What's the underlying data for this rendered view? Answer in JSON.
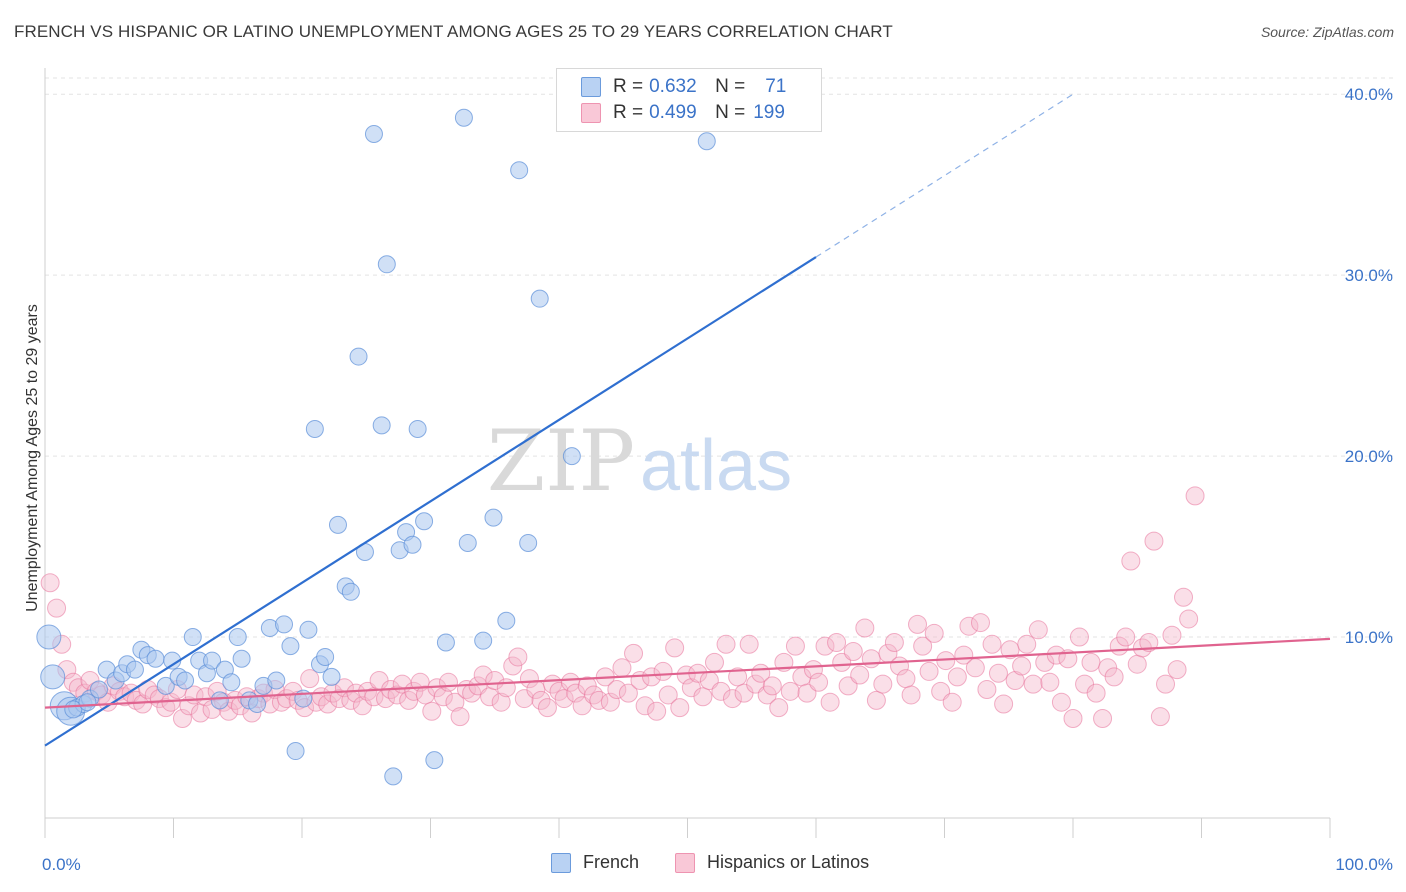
{
  "title": "FRENCH VS HISPANIC OR LATINO UNEMPLOYMENT AMONG AGES 25 TO 29 YEARS CORRELATION CHART",
  "source": "Source: ZipAtlas.com",
  "watermark": {
    "zip": "ZIP",
    "atlas": "atlas"
  },
  "colors": {
    "french": "#5b8fd9",
    "french_fill": "#a9c6ef",
    "hispanic": "#e8739a",
    "hispanic_fill": "#f5b8cb",
    "tick_label": "#3b73c8"
  },
  "legend_top": {
    "rows": [
      {
        "key": "R =",
        "r": "0.632",
        "n_label": "N =",
        "n": "71"
      },
      {
        "key": "R =",
        "r": "0.499",
        "n_label": "N =",
        "n": "199"
      }
    ]
  },
  "legend_bottom": [
    {
      "label": "French"
    },
    {
      "label": "Hispanics or Latinos"
    }
  ],
  "chart_data": {
    "type": "scatter",
    "title": "FRENCH VS HISPANIC OR LATINO UNEMPLOYMENT AMONG AGES 25 TO 29 YEARS CORRELATION CHART",
    "xlabel": "",
    "ylabel": "Unemployment Among Ages 25 to 29 years",
    "xlim": [
      0,
      100
    ],
    "ylim": [
      0,
      42
    ],
    "x_tick_labels": [
      "0.0%",
      "100.0%"
    ],
    "y_ticks": [
      10,
      20,
      30,
      40
    ],
    "y_tick_labels": [
      "10.0%",
      "20.0%",
      "30.0%",
      "40.0%"
    ],
    "grid": true,
    "legend_position": "bottom",
    "series": [
      {
        "name": "French",
        "r": 0.632,
        "n": 71,
        "trend": {
          "x0": 0,
          "y0": 4.0,
          "x1": 60,
          "y1": 31.0,
          "dashed_to_x": 80
        },
        "points": [
          [
            0.3,
            10.0
          ],
          [
            0.6,
            7.8
          ],
          [
            1.5,
            6.2
          ],
          [
            2.0,
            5.9
          ],
          [
            2.5,
            6.1
          ],
          [
            3.0,
            6.3
          ],
          [
            3.5,
            6.6
          ],
          [
            4.2,
            7.1
          ],
          [
            4.8,
            8.2
          ],
          [
            5.5,
            7.6
          ],
          [
            6.0,
            8.0
          ],
          [
            6.4,
            8.5
          ],
          [
            7.0,
            8.2
          ],
          [
            7.5,
            9.3
          ],
          [
            8.0,
            9.0
          ],
          [
            8.6,
            8.8
          ],
          [
            9.4,
            7.3
          ],
          [
            9.9,
            8.7
          ],
          [
            10.4,
            7.8
          ],
          [
            10.9,
            7.6
          ],
          [
            11.5,
            10.0
          ],
          [
            12.0,
            8.7
          ],
          [
            12.6,
            8.0
          ],
          [
            13.0,
            8.7
          ],
          [
            13.6,
            6.5
          ],
          [
            14.0,
            8.2
          ],
          [
            14.5,
            7.5
          ],
          [
            15.0,
            10.0
          ],
          [
            15.3,
            8.8
          ],
          [
            15.9,
            6.5
          ],
          [
            16.5,
            6.3
          ],
          [
            17.0,
            7.3
          ],
          [
            17.5,
            10.5
          ],
          [
            18.0,
            7.6
          ],
          [
            18.6,
            10.7
          ],
          [
            19.1,
            9.5
          ],
          [
            19.5,
            3.7
          ],
          [
            20.1,
            6.6
          ],
          [
            20.5,
            10.4
          ],
          [
            21.0,
            21.5
          ],
          [
            21.4,
            8.5
          ],
          [
            21.8,
            8.9
          ],
          [
            22.3,
            7.8
          ],
          [
            22.8,
            16.2
          ],
          [
            23.4,
            12.8
          ],
          [
            23.8,
            12.5
          ],
          [
            24.4,
            25.5
          ],
          [
            24.9,
            14.7
          ],
          [
            25.6,
            37.8
          ],
          [
            26.2,
            21.7
          ],
          [
            26.6,
            30.6
          ],
          [
            27.1,
            2.3
          ],
          [
            27.6,
            14.8
          ],
          [
            28.1,
            15.8
          ],
          [
            28.6,
            15.1
          ],
          [
            29.0,
            21.5
          ],
          [
            29.5,
            16.4
          ],
          [
            30.3,
            3.2
          ],
          [
            31.2,
            9.7
          ],
          [
            32.6,
            38.7
          ],
          [
            32.9,
            15.2
          ],
          [
            34.1,
            9.8
          ],
          [
            34.9,
            16.6
          ],
          [
            35.9,
            10.9
          ],
          [
            36.9,
            35.8
          ],
          [
            37.6,
            15.2
          ],
          [
            38.5,
            28.7
          ],
          [
            41.0,
            20.0
          ],
          [
            51.5,
            37.4
          ],
          [
            2.2,
            6.0
          ],
          [
            3.3,
            6.4
          ]
        ]
      },
      {
        "name": "Hispanics or Latinos",
        "r": 0.499,
        "n": 199,
        "trend": {
          "x0": 0,
          "y0": 6.1,
          "x1": 100,
          "y1": 9.9
        },
        "points": [
          [
            0.4,
            13.0
          ],
          [
            0.9,
            11.6
          ],
          [
            1.3,
            9.6
          ],
          [
            1.7,
            8.2
          ],
          [
            2.2,
            7.5
          ],
          [
            2.6,
            7.2
          ],
          [
            3.1,
            6.9
          ],
          [
            3.5,
            7.6
          ],
          [
            4.0,
            7.0
          ],
          [
            4.4,
            6.8
          ],
          [
            4.9,
            6.4
          ],
          [
            5.3,
            7.3
          ],
          [
            5.8,
            7.0
          ],
          [
            6.2,
            6.7
          ],
          [
            6.7,
            6.9
          ],
          [
            7.1,
            6.5
          ],
          [
            7.6,
            6.3
          ],
          [
            8.0,
            7.1
          ],
          [
            8.5,
            6.8
          ],
          [
            8.9,
            6.6
          ],
          [
            9.4,
            6.1
          ],
          [
            9.8,
            6.4
          ],
          [
            10.3,
            7.1
          ],
          [
            10.7,
            5.5
          ],
          [
            11.2,
            6.2
          ],
          [
            11.6,
            6.8
          ],
          [
            12.1,
            5.8
          ],
          [
            12.5,
            6.7
          ],
          [
            13.0,
            6.0
          ],
          [
            13.4,
            7.0
          ],
          [
            13.9,
            6.4
          ],
          [
            14.3,
            5.9
          ],
          [
            14.8,
            6.5
          ],
          [
            15.2,
            6.2
          ],
          [
            15.7,
            6.7
          ],
          [
            16.1,
            5.8
          ],
          [
            16.6,
            6.6
          ],
          [
            17.0,
            6.9
          ],
          [
            17.5,
            6.3
          ],
          [
            17.9,
            7.1
          ],
          [
            18.4,
            6.4
          ],
          [
            18.8,
            6.6
          ],
          [
            19.3,
            7.0
          ],
          [
            19.7,
            6.5
          ],
          [
            20.2,
            6.1
          ],
          [
            20.6,
            7.7
          ],
          [
            21.1,
            6.4
          ],
          [
            21.5,
            6.7
          ],
          [
            22.0,
            6.3
          ],
          [
            22.4,
            6.9
          ],
          [
            22.9,
            6.6
          ],
          [
            23.3,
            7.2
          ],
          [
            23.8,
            6.5
          ],
          [
            24.2,
            6.9
          ],
          [
            24.7,
            6.2
          ],
          [
            25.1,
            7.0
          ],
          [
            25.6,
            6.7
          ],
          [
            26.0,
            7.6
          ],
          [
            26.5,
            6.6
          ],
          [
            26.9,
            7.1
          ],
          [
            27.4,
            6.8
          ],
          [
            27.8,
            7.4
          ],
          [
            28.3,
            6.5
          ],
          [
            28.7,
            7.0
          ],
          [
            29.2,
            7.5
          ],
          [
            29.6,
            6.8
          ],
          [
            30.1,
            5.9
          ],
          [
            30.5,
            7.2
          ],
          [
            31.0,
            6.7
          ],
          [
            31.4,
            7.5
          ],
          [
            31.9,
            6.4
          ],
          [
            32.3,
            5.6
          ],
          [
            32.8,
            7.1
          ],
          [
            33.2,
            6.9
          ],
          [
            33.7,
            7.3
          ],
          [
            34.1,
            7.9
          ],
          [
            34.6,
            6.7
          ],
          [
            35.0,
            7.6
          ],
          [
            35.5,
            6.4
          ],
          [
            35.9,
            7.2
          ],
          [
            36.4,
            8.4
          ],
          [
            36.8,
            8.9
          ],
          [
            37.3,
            6.6
          ],
          [
            37.7,
            7.7
          ],
          [
            38.2,
            7.1
          ],
          [
            38.6,
            6.5
          ],
          [
            39.1,
            6.1
          ],
          [
            39.5,
            7.4
          ],
          [
            40.0,
            7.0
          ],
          [
            40.4,
            6.6
          ],
          [
            40.9,
            7.5
          ],
          [
            41.3,
            6.9
          ],
          [
            41.8,
            6.2
          ],
          [
            42.2,
            7.3
          ],
          [
            42.7,
            6.8
          ],
          [
            43.1,
            6.5
          ],
          [
            43.6,
            7.8
          ],
          [
            44.0,
            6.4
          ],
          [
            44.5,
            7.1
          ],
          [
            44.9,
            8.3
          ],
          [
            45.4,
            6.9
          ],
          [
            45.8,
            9.1
          ],
          [
            46.3,
            7.6
          ],
          [
            46.7,
            6.2
          ],
          [
            47.2,
            7.8
          ],
          [
            47.6,
            5.9
          ],
          [
            48.1,
            8.1
          ],
          [
            48.5,
            6.8
          ],
          [
            49.0,
            9.4
          ],
          [
            49.4,
            6.1
          ],
          [
            49.9,
            7.9
          ],
          [
            50.3,
            7.2
          ],
          [
            50.8,
            8.0
          ],
          [
            51.2,
            6.7
          ],
          [
            51.7,
            7.6
          ],
          [
            52.1,
            8.6
          ],
          [
            52.6,
            7.0
          ],
          [
            53.0,
            9.6
          ],
          [
            53.5,
            6.6
          ],
          [
            53.9,
            7.8
          ],
          [
            54.4,
            6.9
          ],
          [
            54.8,
            9.6
          ],
          [
            55.3,
            7.4
          ],
          [
            55.7,
            8.0
          ],
          [
            56.2,
            6.8
          ],
          [
            56.6,
            7.3
          ],
          [
            57.1,
            6.1
          ],
          [
            57.5,
            8.6
          ],
          [
            58.0,
            7.0
          ],
          [
            58.4,
            9.5
          ],
          [
            58.9,
            7.8
          ],
          [
            59.3,
            6.9
          ],
          [
            59.8,
            8.2
          ],
          [
            60.2,
            7.5
          ],
          [
            60.7,
            9.5
          ],
          [
            61.1,
            6.4
          ],
          [
            61.6,
            9.7
          ],
          [
            62.0,
            8.6
          ],
          [
            62.5,
            7.3
          ],
          [
            62.9,
            9.2
          ],
          [
            63.4,
            7.9
          ],
          [
            63.8,
            10.5
          ],
          [
            64.3,
            8.8
          ],
          [
            64.7,
            6.5
          ],
          [
            65.2,
            7.4
          ],
          [
            65.6,
            9.1
          ],
          [
            66.1,
            9.7
          ],
          [
            66.5,
            8.4
          ],
          [
            67.0,
            7.7
          ],
          [
            67.4,
            6.8
          ],
          [
            67.9,
            10.7
          ],
          [
            68.3,
            9.5
          ],
          [
            68.8,
            8.1
          ],
          [
            69.2,
            10.2
          ],
          [
            69.7,
            7.0
          ],
          [
            70.1,
            8.7
          ],
          [
            70.6,
            6.4
          ],
          [
            71.0,
            7.8
          ],
          [
            71.5,
            9.0
          ],
          [
            71.9,
            10.6
          ],
          [
            72.4,
            8.3
          ],
          [
            72.8,
            10.8
          ],
          [
            73.3,
            7.1
          ],
          [
            73.7,
            9.6
          ],
          [
            74.2,
            8.0
          ],
          [
            74.6,
            6.3
          ],
          [
            75.1,
            9.3
          ],
          [
            75.5,
            7.6
          ],
          [
            76.0,
            8.4
          ],
          [
            76.4,
            9.6
          ],
          [
            76.9,
            7.4
          ],
          [
            77.3,
            10.4
          ],
          [
            77.8,
            8.6
          ],
          [
            78.2,
            7.5
          ],
          [
            78.7,
            9.0
          ],
          [
            79.1,
            6.4
          ],
          [
            79.6,
            8.8
          ],
          [
            80.0,
            5.5
          ],
          [
            80.5,
            10.0
          ],
          [
            80.9,
            7.4
          ],
          [
            81.4,
            8.6
          ],
          [
            81.8,
            6.9
          ],
          [
            82.3,
            5.5
          ],
          [
            82.7,
            8.3
          ],
          [
            83.2,
            7.8
          ],
          [
            83.6,
            9.5
          ],
          [
            84.1,
            10.0
          ],
          [
            84.5,
            14.2
          ],
          [
            85.0,
            8.5
          ],
          [
            85.4,
            9.4
          ],
          [
            85.9,
            9.7
          ],
          [
            86.3,
            15.3
          ],
          [
            86.8,
            5.6
          ],
          [
            87.2,
            7.4
          ],
          [
            87.7,
            10.1
          ],
          [
            88.1,
            8.2
          ],
          [
            88.6,
            12.2
          ],
          [
            89.0,
            11.0
          ],
          [
            89.5,
            17.8
          ]
        ]
      }
    ]
  }
}
